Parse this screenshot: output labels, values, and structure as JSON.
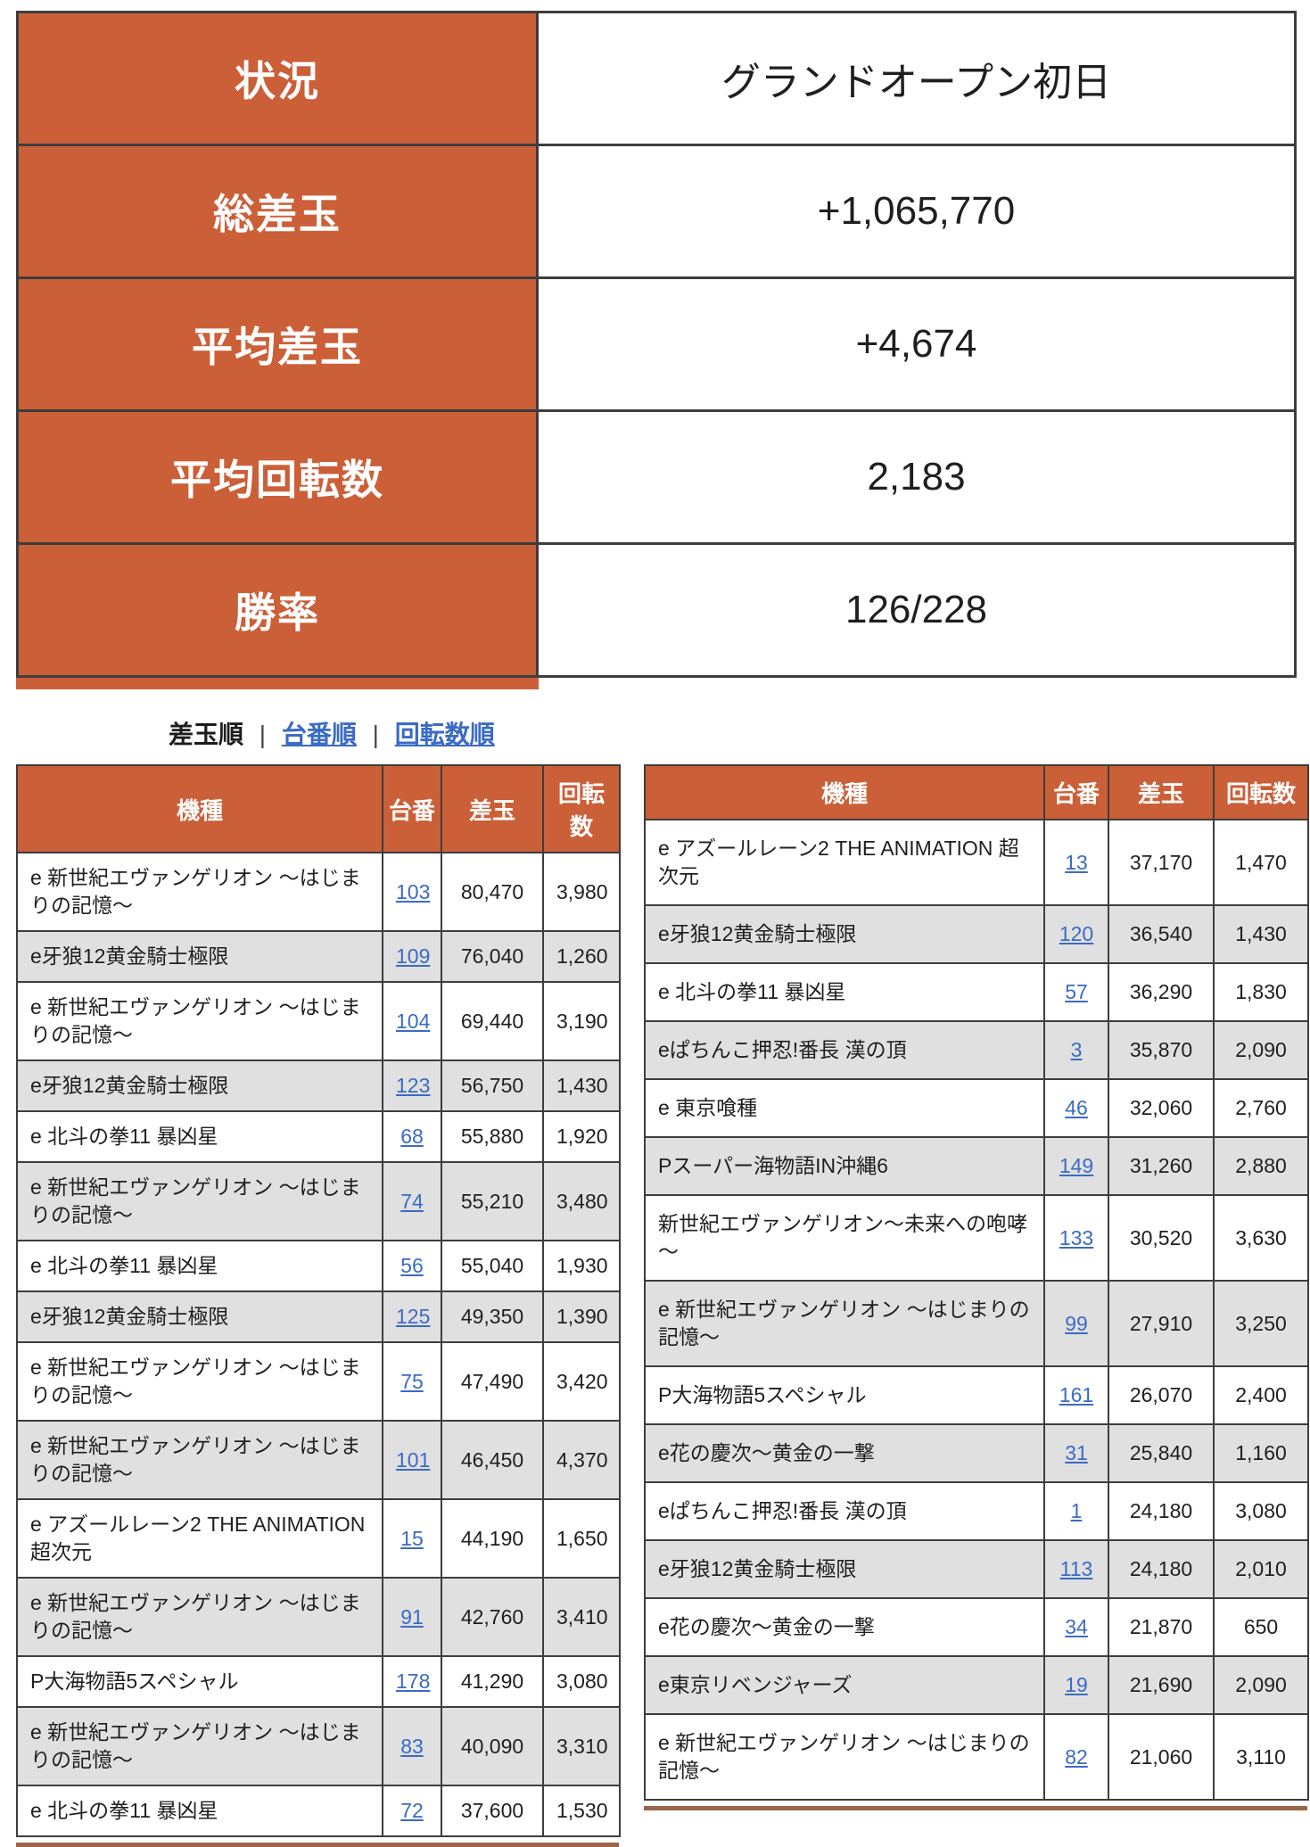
{
  "colors": {
    "accent": "#cb5f38",
    "border": "#3d3d3d",
    "row-gray": "#e0e0e0",
    "link": "#3a6bc5",
    "text": "#1f1f1f",
    "cutline": "#9b6647"
  },
  "summary": {
    "rows": [
      {
        "label": "状況",
        "value": "グランドオープン初日"
      },
      {
        "label": "総差玉",
        "value": "+1,065,770"
      },
      {
        "label": "平均差玉",
        "value": "+4,674"
      },
      {
        "label": "平均回転数",
        "value": "2,183"
      },
      {
        "label": "勝率",
        "value": "126/228"
      }
    ]
  },
  "sort_bar": {
    "current": "差玉順",
    "separator": "|",
    "unit_order_label": "台番順",
    "spin_order_label": "回転数順"
  },
  "tables": {
    "columns": {
      "machine": "機種",
      "unit": "台番",
      "diff": "差玉",
      "spins": "回転数"
    },
    "left": {
      "rows": [
        {
          "machine": "e 新世紀エヴァンゲリオン ～はじまりの記憶～",
          "unit": "103",
          "diff": "80,470",
          "spins": "3,980"
        },
        {
          "machine": "e牙狼12黄金騎士極限",
          "unit": "109",
          "diff": "76,040",
          "spins": "1,260"
        },
        {
          "machine": "e 新世紀エヴァンゲリオン ～はじまりの記憶～",
          "unit": "104",
          "diff": "69,440",
          "spins": "3,190"
        },
        {
          "machine": "e牙狼12黄金騎士極限",
          "unit": "123",
          "diff": "56,750",
          "spins": "1,430"
        },
        {
          "machine": "e 北斗の拳11 暴凶星",
          "unit": "68",
          "diff": "55,880",
          "spins": "1,920"
        },
        {
          "machine": "e 新世紀エヴァンゲリオン ～はじまりの記憶～",
          "unit": "74",
          "diff": "55,210",
          "spins": "3,480"
        },
        {
          "machine": "e 北斗の拳11 暴凶星",
          "unit": "56",
          "diff": "55,040",
          "spins": "1,930"
        },
        {
          "machine": "e牙狼12黄金騎士極限",
          "unit": "125",
          "diff": "49,350",
          "spins": "1,390"
        },
        {
          "machine": "e 新世紀エヴァンゲリオン ～はじまりの記憶～",
          "unit": "75",
          "diff": "47,490",
          "spins": "3,420"
        },
        {
          "machine": "e 新世紀エヴァンゲリオン ～はじまりの記憶～",
          "unit": "101",
          "diff": "46,450",
          "spins": "4,370"
        },
        {
          "machine": "e アズールレーン2 THE ANIMATION 超次元",
          "unit": "15",
          "diff": "44,190",
          "spins": "1,650"
        },
        {
          "machine": "e 新世紀エヴァンゲリオン ～はじまりの記憶～",
          "unit": "91",
          "diff": "42,760",
          "spins": "3,410"
        },
        {
          "machine": "P大海物語5スペシャル",
          "unit": "178",
          "diff": "41,290",
          "spins": "3,080"
        },
        {
          "machine": "e 新世紀エヴァンゲリオン ～はじまりの記憶～",
          "unit": "83",
          "diff": "40,090",
          "spins": "3,310"
        },
        {
          "machine": "e 北斗の拳11 暴凶星",
          "unit": "72",
          "diff": "37,600",
          "spins": "1,530"
        }
      ]
    },
    "right": {
      "rows": [
        {
          "machine": "e アズールレーン2 THE ANIMATION 超次元",
          "unit": "13",
          "diff": "37,170",
          "spins": "1,470"
        },
        {
          "machine": "e牙狼12黄金騎士極限",
          "unit": "120",
          "diff": "36,540",
          "spins": "1,430"
        },
        {
          "machine": "e 北斗の拳11 暴凶星",
          "unit": "57",
          "diff": "36,290",
          "spins": "1,830"
        },
        {
          "machine": "eぱちんこ押忍!番長 漢の頂",
          "unit": "3",
          "diff": "35,870",
          "spins": "2,090"
        },
        {
          "machine": "e 東京喰種",
          "unit": "46",
          "diff": "32,060",
          "spins": "2,760"
        },
        {
          "machine": "Pスーパー海物語IN沖縄6",
          "unit": "149",
          "diff": "31,260",
          "spins": "2,880"
        },
        {
          "machine": "新世紀エヴァンゲリオン～未来への咆哮～",
          "unit": "133",
          "diff": "30,520",
          "spins": "3,630"
        },
        {
          "machine": "e 新世紀エヴァンゲリオン ～はじまりの記憶～",
          "unit": "99",
          "diff": "27,910",
          "spins": "3,250"
        },
        {
          "machine": "P大海物語5スペシャル",
          "unit": "161",
          "diff": "26,070",
          "spins": "2,400"
        },
        {
          "machine": "e花の慶次～黄金の一撃",
          "unit": "31",
          "diff": "25,840",
          "spins": "1,160"
        },
        {
          "machine": "eぱちんこ押忍!番長 漢の頂",
          "unit": "1",
          "diff": "24,180",
          "spins": "3,080"
        },
        {
          "machine": "e牙狼12黄金騎士極限",
          "unit": "113",
          "diff": "24,180",
          "spins": "2,010"
        },
        {
          "machine": "e花の慶次～黄金の一撃",
          "unit": "34",
          "diff": "21,870",
          "spins": "650"
        },
        {
          "machine": "e東京リベンジャーズ",
          "unit": "19",
          "diff": "21,690",
          "spins": "2,090"
        },
        {
          "machine": "e 新世紀エヴァンゲリオン ～はじまりの記憶～",
          "unit": "82",
          "diff": "21,060",
          "spins": "3,110"
        }
      ]
    }
  }
}
